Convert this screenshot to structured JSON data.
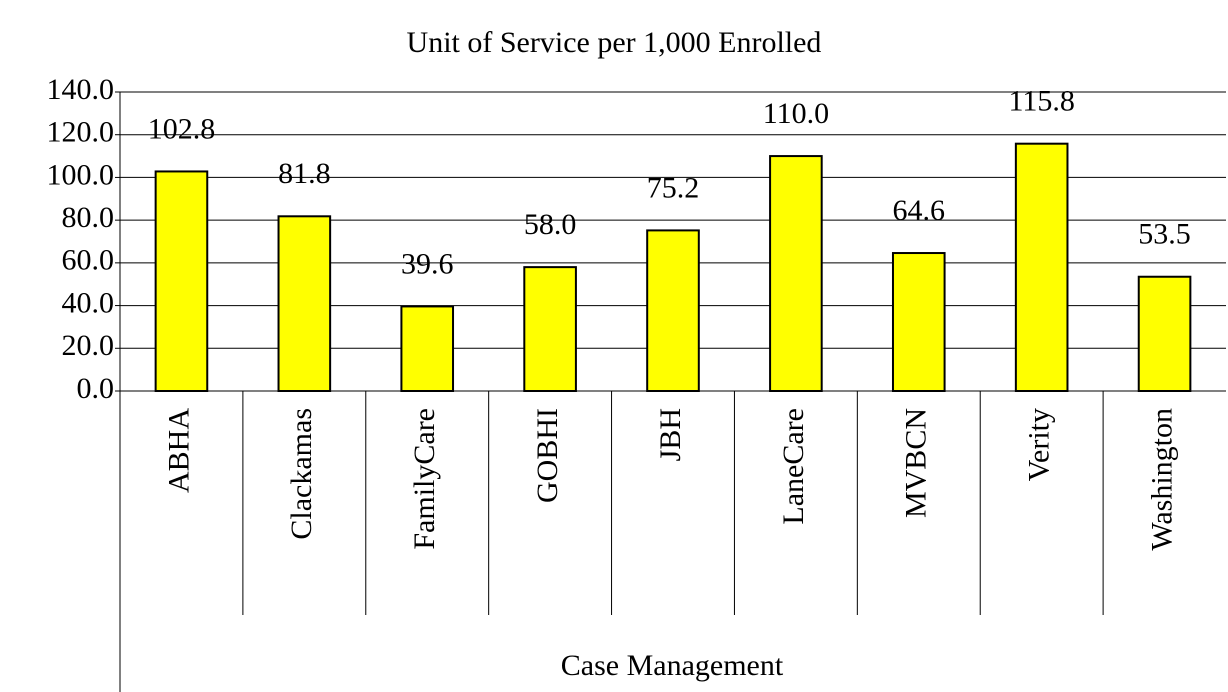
{
  "chart_data": {
    "type": "bar",
    "title": "Unit of Service per 1,000 Enrolled",
    "xlabel": "Case Management",
    "categories": [
      "ABHA",
      "Clackamas",
      "FamilyCare",
      "GOBHI",
      "JBH",
      "LaneCare",
      "MVBCN",
      "Verity",
      "Washington"
    ],
    "values": [
      102.8,
      81.8,
      39.6,
      58.0,
      75.2,
      110.0,
      64.6,
      115.8,
      53.5
    ],
    "value_labels": [
      "102.8",
      "81.8",
      "39.6",
      "58.0",
      "75.2",
      "110.0",
      "64.6",
      "115.8",
      "53.5"
    ],
    "color": "#ffff00",
    "ylim": [
      0,
      140
    ],
    "yticks": [
      {
        "value": 0,
        "label": "0.0"
      },
      {
        "value": 20,
        "label": "20.0"
      },
      {
        "value": 40,
        "label": "40.0"
      },
      {
        "value": 60,
        "label": "60.0"
      },
      {
        "value": 80,
        "label": "80.0"
      },
      {
        "value": 100,
        "label": "100.0"
      },
      {
        "value": 120,
        "label": "120.0"
      },
      {
        "value": 140,
        "label": "140.0"
      }
    ],
    "grid": true
  }
}
